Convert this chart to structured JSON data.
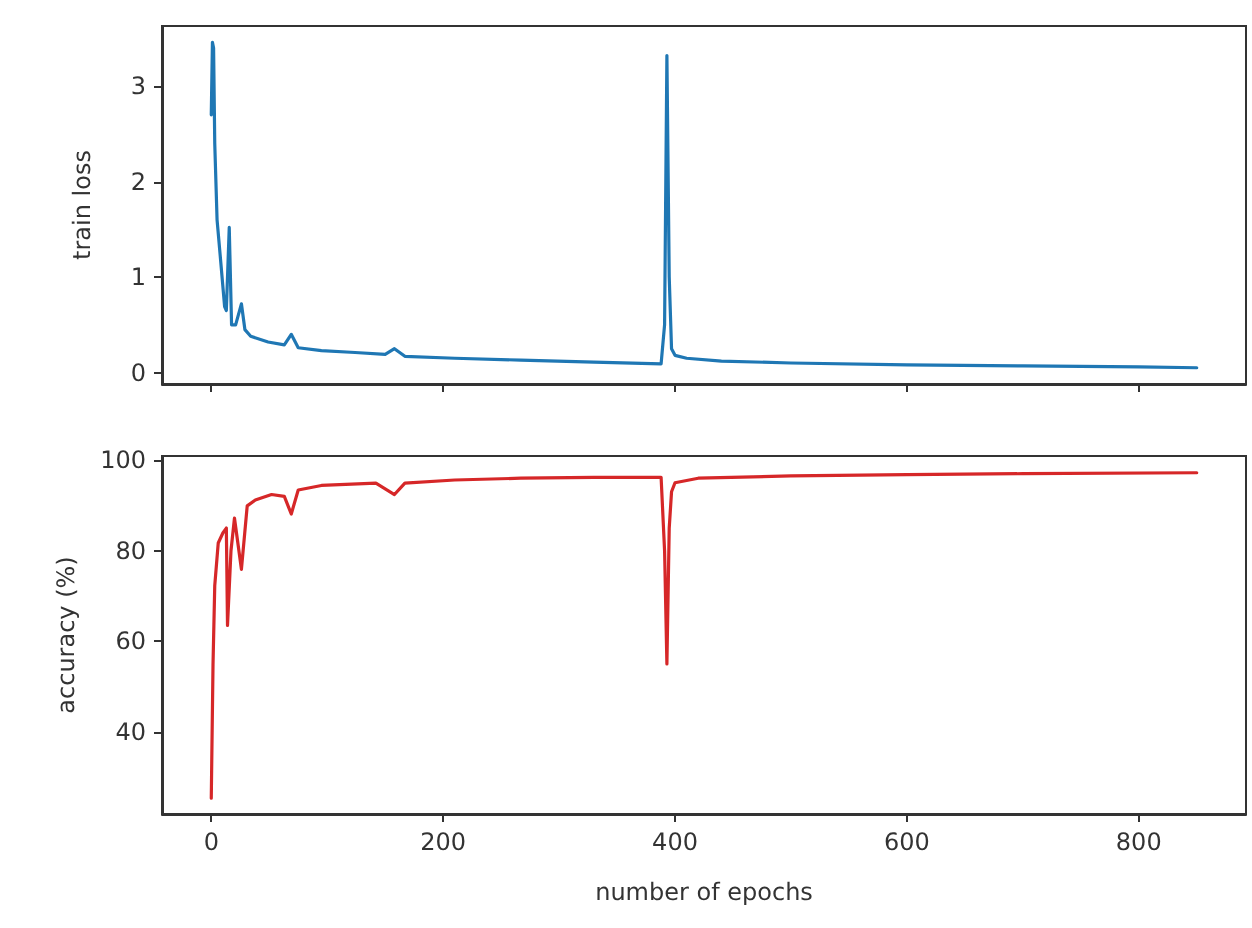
{
  "chart_data": [
    {
      "type": "line",
      "ylabel": "train loss",
      "tick_labels": "y",
      "xlim": [
        -42.5,
        892.5
      ],
      "xticks": [
        0,
        200,
        400,
        600,
        800
      ],
      "ylim": [
        -0.12,
        3.63
      ],
      "yticks": [
        0,
        1,
        2,
        3
      ],
      "series": [
        {
          "color": "#1f77b4",
          "x": [
            0,
            1,
            2,
            3,
            5,
            8.6,
            11.5,
            13,
            15.5,
            17.5,
            21,
            26,
            29,
            34,
            49,
            63,
            69,
            75,
            95,
            124,
            150,
            158,
            167,
            210,
            267,
            330,
            388,
            391,
            393,
            395,
            397,
            400,
            410,
            440,
            500,
            600,
            700,
            800,
            850
          ],
          "values": [
            2.7,
            3.46,
            3.4,
            2.4,
            1.6,
            1.1,
            0.69,
            0.65,
            1.52,
            0.5,
            0.5,
            0.72,
            0.45,
            0.38,
            0.32,
            0.29,
            0.4,
            0.26,
            0.23,
            0.21,
            0.19,
            0.25,
            0.17,
            0.15,
            0.13,
            0.11,
            0.09,
            0.5,
            3.32,
            1.0,
            0.25,
            0.18,
            0.15,
            0.12,
            0.1,
            0.08,
            0.07,
            0.06,
            0.05
          ]
        }
      ]
    },
    {
      "type": "line",
      "ylabel": "accuracy (%)",
      "xlabel": "number of epochs",
      "xlim": [
        -42.5,
        892.5
      ],
      "xticks": [
        0,
        200,
        400,
        600,
        800
      ],
      "ylim": [
        21.9,
        100.9
      ],
      "yticks": [
        40,
        60,
        80,
        100
      ],
      "series": [
        {
          "color": "#d62728",
          "x": [
            0,
            1.5,
            3,
            6,
            10,
            13,
            14,
            17,
            20,
            26,
            31,
            38,
            52,
            63,
            69,
            75,
            95,
            142,
            158,
            167,
            210,
            267,
            330,
            388,
            391,
            393,
            395,
            397,
            400,
            420,
            500,
            600,
            700,
            850
          ],
          "values": [
            25.4,
            54.8,
            72.3,
            81.7,
            83.9,
            85,
            63.5,
            80,
            87.2,
            75.9,
            89.9,
            91.2,
            92.4,
            92,
            88.1,
            93.4,
            94.4,
            94.9,
            92.4,
            94.9,
            95.6,
            96,
            96.2,
            96.2,
            80,
            55,
            85,
            93,
            95,
            96,
            96.5,
            96.8,
            97,
            97.2
          ]
        }
      ]
    }
  ]
}
